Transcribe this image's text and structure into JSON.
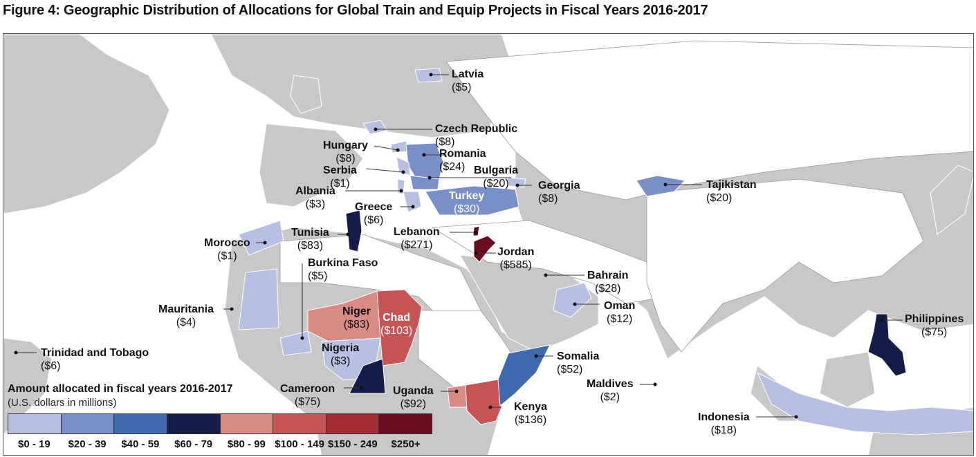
{
  "title": "Figure 4: Geographic Distribution of Allocations for Global Train and Equip Projects in Fiscal Years 2016-2017",
  "legend": {
    "title": "Amount allocated in fiscal years 2016-2017",
    "subtitle": "(U.S. dollars in millions)",
    "bins": [
      {
        "label": "$0 - 19",
        "color": "#b7bfe3"
      },
      {
        "label": "$20 - 39",
        "color": "#7a8fc8"
      },
      {
        "label": "$40 - 59",
        "color": "#3e69ad"
      },
      {
        "label": "$60 - 79",
        "color": "#141c4a"
      },
      {
        "label": "$80 - 99",
        "color": "#d98a85"
      },
      {
        "label": "$100 - 149",
        "color": "#c65454"
      },
      {
        "label": "$150 - 249",
        "color": "#a52a33"
      },
      {
        "label": "$250+",
        "color": "#6a0d1e"
      }
    ]
  },
  "colors": {
    "land": "#c8c8c8",
    "water": "#ffffff",
    "neutral_land": "#ffffff",
    "dot": "#111111"
  },
  "countries": [
    {
      "id": "latvia",
      "name": "Latvia",
      "amount": "($5)"
    },
    {
      "id": "czech",
      "name": "Czech Republic",
      "amount": "($8)"
    },
    {
      "id": "hungary",
      "name": "Hungary",
      "amount": "($8)"
    },
    {
      "id": "romania",
      "name": "Romania",
      "amount": "($24)"
    },
    {
      "id": "serbia",
      "name": "Serbia",
      "amount": "($1)"
    },
    {
      "id": "bulgaria",
      "name": "Bulgaria",
      "amount": "($20)"
    },
    {
      "id": "georgia",
      "name": "Georgia",
      "amount": "($8)"
    },
    {
      "id": "tajikistan",
      "name": "Tajikistan",
      "amount": "($20)"
    },
    {
      "id": "albania",
      "name": "Albania",
      "amount": "($3)"
    },
    {
      "id": "turkey",
      "name": "Turkey",
      "amount": "($30)"
    },
    {
      "id": "greece",
      "name": "Greece",
      "amount": "($6)"
    },
    {
      "id": "tunisia",
      "name": "Tunisia",
      "amount": "($83)"
    },
    {
      "id": "morocco",
      "name": "Morocco",
      "amount": "($1)"
    },
    {
      "id": "lebanon",
      "name": "Lebanon",
      "amount": "($271)"
    },
    {
      "id": "jordan",
      "name": "Jordan",
      "amount": "($585)"
    },
    {
      "id": "burkina",
      "name": "Burkina Faso",
      "amount": "($5)"
    },
    {
      "id": "bahrain",
      "name": "Bahrain",
      "amount": "($28)"
    },
    {
      "id": "mauritania",
      "name": "Mauritania",
      "amount": "($4)"
    },
    {
      "id": "niger",
      "name": "Niger",
      "amount": "($83)"
    },
    {
      "id": "chad",
      "name": "Chad",
      "amount": "($103)"
    },
    {
      "id": "oman",
      "name": "Oman",
      "amount": "($12)"
    },
    {
      "id": "philippines",
      "name": "Philippines",
      "amount": "($75)"
    },
    {
      "id": "trinidad",
      "name": "Trinidad and Tobago",
      "amount": "($6)"
    },
    {
      "id": "nigeria",
      "name": "Nigeria",
      "amount": "($3)"
    },
    {
      "id": "somalia",
      "name": "Somalia",
      "amount": "($52)"
    },
    {
      "id": "maldives",
      "name": "Maldives",
      "amount": "($2)"
    },
    {
      "id": "cameroon",
      "name": "Cameroon",
      "amount": "($75)"
    },
    {
      "id": "uganda",
      "name": "Uganda",
      "amount": "($92)"
    },
    {
      "id": "kenya",
      "name": "Kenya",
      "amount": "($136)"
    },
    {
      "id": "indonesia",
      "name": "Indonesia",
      "amount": "($18)"
    }
  ]
}
